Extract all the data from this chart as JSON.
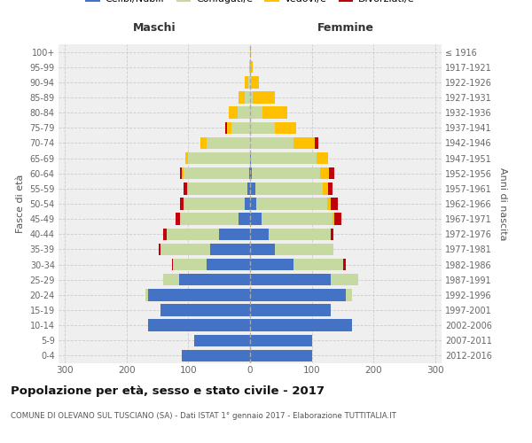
{
  "age_groups": [
    "0-4",
    "5-9",
    "10-14",
    "15-19",
    "20-24",
    "25-29",
    "30-34",
    "35-39",
    "40-44",
    "45-49",
    "50-54",
    "55-59",
    "60-64",
    "65-69",
    "70-74",
    "75-79",
    "80-84",
    "85-89",
    "90-94",
    "95-99",
    "100+"
  ],
  "birth_years": [
    "2012-2016",
    "2007-2011",
    "2002-2006",
    "1997-2001",
    "1992-1996",
    "1987-1991",
    "1982-1986",
    "1977-1981",
    "1972-1976",
    "1967-1971",
    "1962-1966",
    "1957-1961",
    "1952-1956",
    "1947-1951",
    "1942-1946",
    "1937-1941",
    "1932-1936",
    "1927-1931",
    "1922-1926",
    "1917-1921",
    "≤ 1916"
  ],
  "male_celibe": [
    110,
    90,
    165,
    145,
    165,
    115,
    70,
    65,
    50,
    18,
    8,
    5,
    2,
    0,
    0,
    0,
    0,
    0,
    0,
    0,
    0
  ],
  "male_coniugato": [
    0,
    0,
    0,
    0,
    5,
    25,
    55,
    80,
    85,
    95,
    100,
    95,
    105,
    100,
    70,
    30,
    20,
    8,
    3,
    1,
    0
  ],
  "male_vedovo": [
    0,
    0,
    0,
    0,
    0,
    0,
    0,
    0,
    0,
    0,
    0,
    2,
    3,
    5,
    10,
    8,
    15,
    10,
    5,
    1,
    0
  ],
  "male_divorziato": [
    0,
    0,
    0,
    0,
    0,
    0,
    2,
    3,
    5,
    8,
    6,
    5,
    4,
    0,
    0,
    2,
    0,
    0,
    0,
    0,
    0
  ],
  "female_celibe": [
    100,
    100,
    165,
    130,
    155,
    130,
    70,
    40,
    30,
    18,
    10,
    8,
    3,
    2,
    0,
    0,
    0,
    0,
    0,
    0,
    0
  ],
  "female_coniugato": [
    0,
    0,
    0,
    0,
    10,
    45,
    80,
    95,
    100,
    115,
    115,
    110,
    110,
    105,
    70,
    40,
    20,
    5,
    2,
    0,
    0
  ],
  "female_vedovo": [
    0,
    0,
    0,
    0,
    0,
    0,
    0,
    0,
    0,
    3,
    5,
    8,
    15,
    20,
    35,
    35,
    40,
    35,
    12,
    5,
    2
  ],
  "female_divorziato": [
    0,
    0,
    0,
    0,
    0,
    0,
    5,
    0,
    5,
    12,
    12,
    8,
    8,
    0,
    5,
    0,
    0,
    0,
    0,
    0,
    0
  ],
  "colors": {
    "celibe": "#4472c4",
    "coniugato": "#c5d9a0",
    "vedovo": "#ffc000",
    "divorziato": "#c0000b"
  },
  "title": "Popolazione per età, sesso e stato civile - 2017",
  "subtitle": "COMUNE DI OLEVANO SUL TUSCIANO (SA) - Dati ISTAT 1° gennaio 2017 - Elaborazione TUTTITALIA.IT",
  "xlabel_left": "Maschi",
  "xlabel_right": "Femmine",
  "ylabel_left": "Fasce di età",
  "ylabel_right": "Anni di nascita",
  "xlim": 310,
  "background_color": "#ffffff",
  "plot_bg_color": "#efefef",
  "grid_color": "#cccccc"
}
